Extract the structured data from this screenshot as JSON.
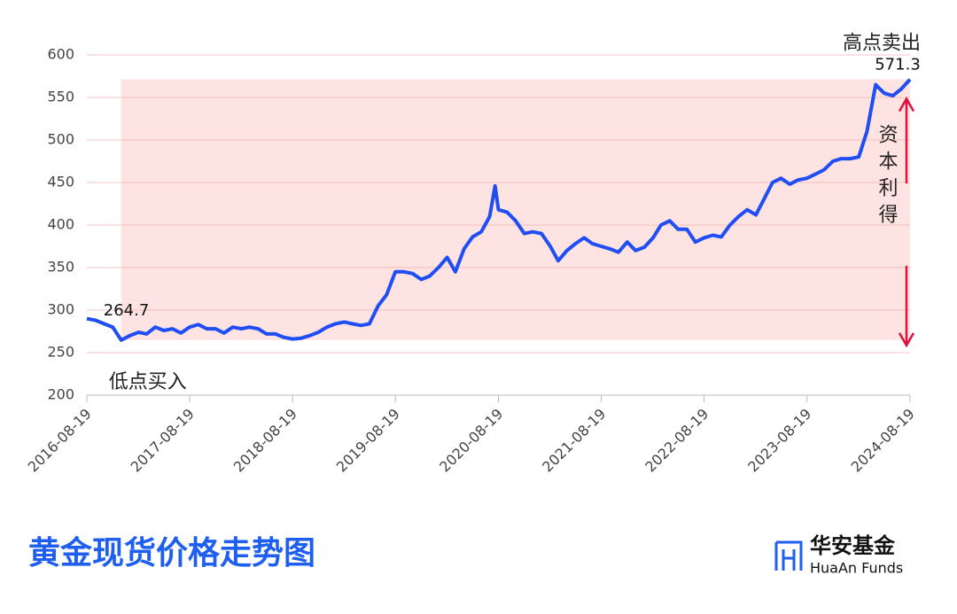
{
  "chart_data": {
    "type": "line",
    "title": "黄金现货价格走势图",
    "x": [
      "2016-08-19",
      "2016-09-19",
      "2016-10-19",
      "2016-11-19",
      "2016-12-19",
      "2017-01-19",
      "2017-02-19",
      "2017-03-19",
      "2017-04-19",
      "2017-05-19",
      "2017-06-19",
      "2017-07-19",
      "2017-08-19",
      "2017-09-19",
      "2017-10-19",
      "2017-11-19",
      "2017-12-19",
      "2018-01-19",
      "2018-02-19",
      "2018-03-19",
      "2018-04-19",
      "2018-05-19",
      "2018-06-19",
      "2018-07-19",
      "2018-08-19",
      "2018-09-19",
      "2018-10-19",
      "2018-11-19",
      "2018-12-19",
      "2019-01-19",
      "2019-02-19",
      "2019-03-19",
      "2019-04-19",
      "2019-05-19",
      "2019-06-19",
      "2019-07-19",
      "2019-08-19",
      "2019-09-19",
      "2019-10-19",
      "2019-11-19",
      "2019-12-19",
      "2020-01-19",
      "2020-02-19",
      "2020-03-19",
      "2020-04-19",
      "2020-05-19",
      "2020-06-19",
      "2020-07-19",
      "2020-08-07",
      "2020-08-19",
      "2020-09-19",
      "2020-10-19",
      "2020-11-19",
      "2020-12-19",
      "2021-01-19",
      "2021-02-19",
      "2021-03-19",
      "2021-04-19",
      "2021-05-19",
      "2021-06-19",
      "2021-07-19",
      "2021-08-19",
      "2021-09-19",
      "2021-10-19",
      "2021-11-19",
      "2021-12-19",
      "2022-01-19",
      "2022-02-19",
      "2022-03-19",
      "2022-04-19",
      "2022-05-19",
      "2022-06-19",
      "2022-07-19",
      "2022-08-19",
      "2022-09-19",
      "2022-10-19",
      "2022-11-19",
      "2022-12-19",
      "2023-01-19",
      "2023-02-19",
      "2023-03-19",
      "2023-04-19",
      "2023-05-19",
      "2023-06-19",
      "2023-07-19",
      "2023-08-19",
      "2023-09-19",
      "2023-10-19",
      "2023-11-19",
      "2023-12-19",
      "2024-01-19",
      "2024-02-19",
      "2024-03-19",
      "2024-04-19",
      "2024-05-19",
      "2024-06-19",
      "2024-07-19",
      "2024-08-19"
    ],
    "values": [
      290,
      288,
      284,
      280,
      264.7,
      270,
      274,
      272,
      280,
      276,
      278,
      273,
      280,
      283,
      278,
      278,
      273,
      280,
      278,
      280,
      278,
      272,
      272,
      268,
      266,
      267,
      270,
      274,
      280,
      284,
      286,
      284,
      282,
      284,
      305,
      318,
      345,
      345,
      343,
      336,
      340,
      350,
      362,
      345,
      372,
      386,
      392,
      410,
      446,
      418,
      415,
      405,
      390,
      392,
      390,
      375,
      358,
      370,
      378,
      385,
      378,
      375,
      372,
      368,
      380,
      370,
      374,
      385,
      400,
      405,
      395,
      395,
      380,
      385,
      388,
      386,
      400,
      410,
      418,
      412,
      430,
      450,
      455,
      448,
      453,
      455,
      460,
      465,
      475,
      478,
      478,
      480,
      510,
      565,
      555,
      552,
      560,
      571.3
    ],
    "color": "#1f4ef5",
    "xlim": [
      "2016-08-19",
      "2024-08-19"
    ],
    "xticks": [
      "2016-08-19",
      "2017-08-19",
      "2018-08-19",
      "2019-08-19",
      "2020-08-19",
      "2021-08-19",
      "2022-08-19",
      "2023-08-19",
      "2024-08-19"
    ],
    "ylim": [
      200,
      600
    ],
    "yticks": [
      200,
      250,
      300,
      350,
      400,
      450,
      500,
      550,
      600
    ],
    "grid": true,
    "annotations": {
      "low": {
        "x": "2016-12-19",
        "value": 264.7,
        "text": "低点买入"
      },
      "high": {
        "x": "2024-08-19",
        "value": 571.3,
        "text": "高点卖出"
      },
      "gain": "资本利得"
    },
    "shade_color": "#fde3e1",
    "arrow_color": "#e0103a"
  },
  "brand": {
    "name": "华安基金",
    "name_en": "HuaAn Funds"
  }
}
